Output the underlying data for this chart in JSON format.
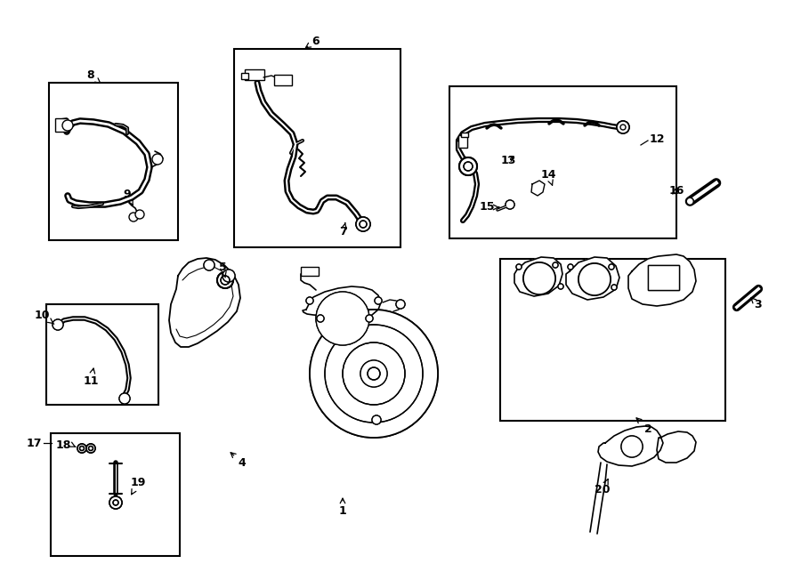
{
  "bg_color": "#ffffff",
  "line_color": "#000000",
  "lw": 1.3,
  "boxes": {
    "8": [
      55,
      93,
      200,
      270
    ],
    "10": [
      52,
      342,
      178,
      455
    ],
    "17": [
      57,
      487,
      202,
      625
    ],
    "6": [
      263,
      55,
      450,
      278
    ],
    "12": [
      505,
      97,
      760,
      268
    ],
    "2": [
      562,
      291,
      815,
      473
    ]
  },
  "labels": {
    "1": [
      385,
      572,
      385,
      553
    ],
    "2": [
      728,
      481,
      710,
      465
    ],
    "3": [
      849,
      341,
      841,
      334
    ],
    "4": [
      272,
      518,
      257,
      505
    ],
    "5": [
      250,
      301,
      254,
      314
    ],
    "6": [
      355,
      48,
      340,
      58
    ],
    "7": [
      386,
      258,
      388,
      248
    ],
    "8": [
      102,
      87,
      116,
      97
    ],
    "9": [
      143,
      218,
      151,
      232
    ],
    "10": [
      48,
      354,
      64,
      366
    ],
    "11": [
      102,
      427,
      106,
      410
    ],
    "12": [
      728,
      157,
      718,
      165
    ],
    "13": [
      571,
      179,
      580,
      174
    ],
    "14": [
      616,
      196,
      622,
      210
    ],
    "15": [
      556,
      232,
      566,
      232
    ],
    "16": [
      759,
      213,
      751,
      220
    ],
    "17": [
      48,
      497,
      60,
      497
    ],
    "18": [
      81,
      501,
      90,
      505
    ],
    "19": [
      154,
      543,
      147,
      556
    ],
    "20": [
      677,
      550,
      685,
      535
    ]
  }
}
